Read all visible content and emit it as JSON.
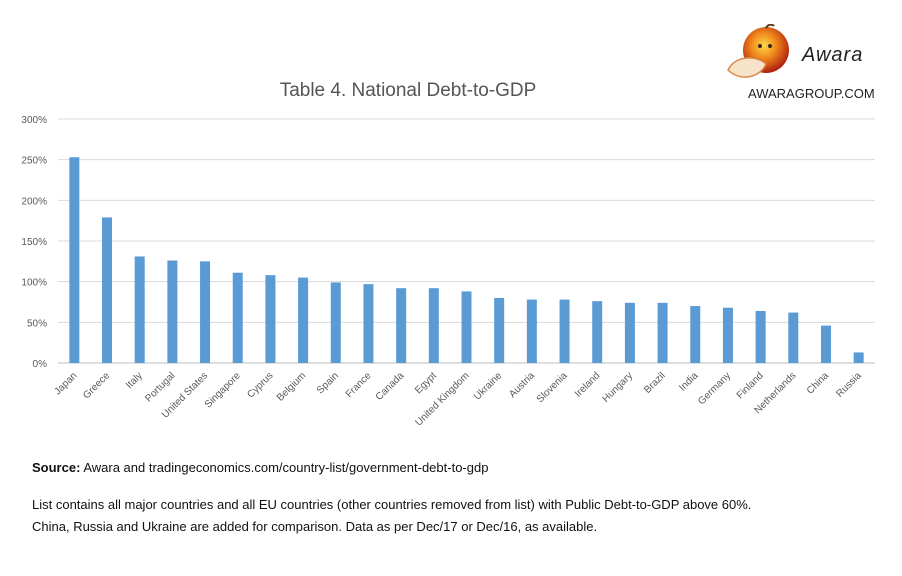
{
  "logo": {
    "name": "Awara",
    "url": "AWARAGROUP.COM"
  },
  "notes": {
    "source_label": "Source:",
    "source_text": "Awara and tradingeconomics.com/country-list/government-debt-to-gdp",
    "line1": "List contains all major countries and all EU countries (other countries removed from list) with Public Debt-to-GDP above 60%.",
    "line2": "China, Russia and Ukraine are added for comparison. Data as per Dec/17 or Dec/16, as available."
  },
  "chart_data": {
    "type": "bar",
    "title": "Table 4.  National Debt-to-GDP",
    "xlabel": "",
    "ylabel": "",
    "ylim": [
      0,
      300
    ],
    "ytick_step": 50,
    "yformat": "percent",
    "grid": true,
    "bar_color": "#5b9bd5",
    "categories": [
      "Japan",
      "Greece",
      "Italy",
      "Portugal",
      "United States",
      "Singapore",
      "Cyprus",
      "Belgium",
      "Spain",
      "France",
      "Canada",
      "Egypt",
      "United Kingdom",
      "Ukraine",
      "Austria",
      "Slovenia",
      "Ireland",
      "Hungary",
      "Brazil",
      "India",
      "Germany",
      "Finland",
      "Netherlands",
      "China",
      "Russia"
    ],
    "values": [
      253,
      179,
      131,
      126,
      125,
      111,
      108,
      105,
      99,
      97,
      92,
      92,
      88,
      80,
      78,
      78,
      76,
      74,
      74,
      70,
      68,
      64,
      62,
      46,
      13
    ]
  }
}
